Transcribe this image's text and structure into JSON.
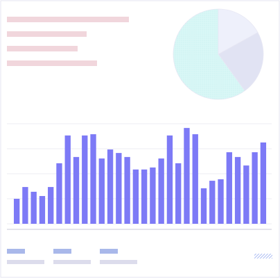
{
  "chart_data": [
    {
      "type": "pie",
      "values": [
        17,
        23,
        60
      ],
      "colors": [
        "#eef0fb",
        "#e1e3f3",
        "#d9f7f6"
      ]
    },
    {
      "type": "bar",
      "values": [
        1.0,
        1.47,
        1.28,
        1.11,
        1.47,
        2.42,
        3.53,
        2.67,
        3.53,
        3.58,
        2.61,
        2.97,
        2.83,
        2.67,
        2.17,
        2.17,
        2.25,
        2.61,
        3.53,
        2.42,
        3.83,
        3.58,
        1.42,
        1.72,
        1.78,
        2.86,
        2.67,
        2.33,
        2.86,
        3.25
      ],
      "color": "#7d7af6",
      "ylim": [
        0,
        4
      ],
      "yticks": [
        0,
        1,
        2,
        3,
        4
      ],
      "grid": true
    }
  ]
}
